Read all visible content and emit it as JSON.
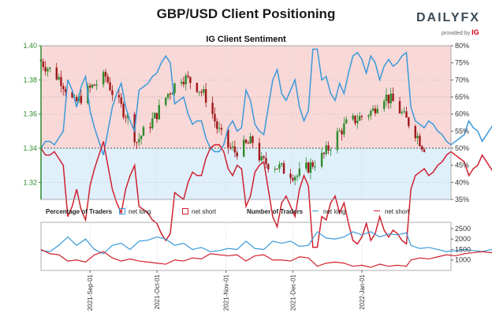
{
  "header": {
    "title": "GBP/USD Client Positioning",
    "brand": {
      "name": "DAILYFX",
      "tagline": "provided by",
      "tagline_brand": "IG"
    }
  },
  "legend": {
    "pct_label": "Percentage of Traders",
    "pct_long": "net long",
    "pct_short": "net short",
    "num_label": "Number of Traders",
    "num_long": "net long",
    "num_short": "net short"
  },
  "colors": {
    "long": "#3a9ad9",
    "short": "#d0202e",
    "long_fill": "#dff0fb",
    "short_fill": "#f9d8d8",
    "candle_up": "#2e8b2e",
    "candle_down": "#a01818",
    "axis_left": "#2e8b2e",
    "ref_line": "#555555"
  },
  "chart_data": {
    "type": "line",
    "subtitle": "IG Client Sentiment",
    "x_ticks": [
      "2021-Sep-01",
      "2021-Oct-01",
      "2021-Nov-01",
      "2021-Dec-01",
      "2022-Jan-01"
    ],
    "x_range": [
      "2021-Aug-10",
      "2022-Feb-10"
    ],
    "price_axis": {
      "ticks": [
        "1.40",
        "1.38",
        "1.36",
        "1.34",
        "1.32"
      ],
      "range": [
        1.31,
        1.4
      ]
    },
    "pct_axis": {
      "ticks": [
        "80%",
        "75%",
        "70%",
        "65%",
        "60%",
        "55%",
        "50%",
        "45%",
        "40%",
        "35%"
      ],
      "range": [
        35,
        80
      ]
    },
    "count_axis": {
      "ticks": [
        "2500",
        "2000",
        "1500",
        "1000"
      ],
      "range": [
        500,
        2800
      ]
    },
    "reference_lines": {
      "price": 1.34,
      "pct": 50
    },
    "pct_long": [
      [
        0,
        50
      ],
      [
        2,
        52
      ],
      [
        4,
        52
      ],
      [
        6,
        51
      ],
      [
        8,
        53
      ],
      [
        10,
        55
      ],
      [
        12,
        70
      ],
      [
        14,
        67
      ],
      [
        16,
        62
      ],
      [
        18,
        68
      ],
      [
        20,
        71
      ],
      [
        22,
        61
      ],
      [
        24,
        56
      ],
      [
        26,
        52
      ],
      [
        28,
        48
      ],
      [
        30,
        55
      ],
      [
        32,
        62
      ],
      [
        34,
        66
      ],
      [
        36,
        69
      ],
      [
        38,
        62
      ],
      [
        40,
        58
      ],
      [
        42,
        55
      ],
      [
        44,
        67
      ],
      [
        46,
        68
      ],
      [
        48,
        69
      ],
      [
        50,
        71
      ],
      [
        52,
        72
      ],
      [
        54,
        75
      ],
      [
        56,
        77
      ],
      [
        58,
        75
      ],
      [
        60,
        63
      ],
      [
        62,
        64
      ],
      [
        64,
        65
      ],
      [
        66,
        60
      ],
      [
        68,
        57
      ],
      [
        70,
        58
      ],
      [
        72,
        58
      ],
      [
        74,
        53
      ],
      [
        76,
        50
      ],
      [
        78,
        49
      ],
      [
        80,
        49
      ],
      [
        82,
        51
      ],
      [
        84,
        56
      ],
      [
        86,
        58
      ],
      [
        88,
        55
      ],
      [
        90,
        56
      ],
      [
        92,
        67
      ],
      [
        94,
        64
      ],
      [
        96,
        57
      ],
      [
        98,
        55
      ],
      [
        100,
        54
      ],
      [
        102,
        62
      ],
      [
        104,
        70
      ],
      [
        106,
        73
      ],
      [
        108,
        66
      ],
      [
        110,
        64
      ],
      [
        112,
        67
      ],
      [
        114,
        70
      ],
      [
        116,
        62
      ],
      [
        118,
        58
      ],
      [
        120,
        61
      ],
      [
        122,
        79
      ],
      [
        124,
        79
      ],
      [
        126,
        70
      ],
      [
        128,
        71
      ],
      [
        130,
        66
      ],
      [
        132,
        64
      ],
      [
        134,
        69
      ],
      [
        136,
        66
      ],
      [
        138,
        72
      ],
      [
        140,
        77
      ],
      [
        142,
        78
      ],
      [
        144,
        76
      ],
      [
        146,
        72
      ],
      [
        148,
        77
      ],
      [
        150,
        75
      ],
      [
        152,
        70
      ],
      [
        154,
        74
      ],
      [
        156,
        76
      ],
      [
        158,
        74
      ],
      [
        160,
        75
      ],
      [
        162,
        77
      ],
      [
        164,
        78
      ],
      [
        166,
        62
      ],
      [
        168,
        58
      ],
      [
        170,
        57
      ],
      [
        172,
        56
      ],
      [
        174,
        58
      ],
      [
        176,
        57
      ],
      [
        178,
        55
      ],
      [
        180,
        54
      ],
      [
        182,
        52
      ],
      [
        184,
        51
      ],
      [
        186,
        52
      ],
      [
        188,
        53
      ],
      [
        190,
        54
      ],
      [
        192,
        58
      ],
      [
        194,
        56
      ],
      [
        196,
        55
      ],
      [
        198,
        52
      ],
      [
        200,
        54
      ],
      [
        202,
        56
      ],
      [
        204,
        58
      ],
      [
        206,
        55
      ],
      [
        208,
        53
      ],
      [
        210,
        51
      ],
      [
        212,
        52
      ],
      [
        214,
        54
      ],
      [
        216,
        57
      ],
      [
        218,
        58
      ]
    ],
    "num_long": [
      [
        0,
        1450
      ],
      [
        4,
        1400
      ],
      [
        8,
        1700
      ],
      [
        12,
        2100
      ],
      [
        16,
        1700
      ],
      [
        20,
        2000
      ],
      [
        24,
        1500
      ],
      [
        28,
        1300
      ],
      [
        32,
        1700
      ],
      [
        36,
        1800
      ],
      [
        40,
        1500
      ],
      [
        44,
        1900
      ],
      [
        48,
        1950
      ],
      [
        52,
        2100
      ],
      [
        56,
        2000
      ],
      [
        60,
        1700
      ],
      [
        64,
        1800
      ],
      [
        68,
        1500
      ],
      [
        72,
        1600
      ],
      [
        76,
        1400
      ],
      [
        80,
        1450
      ],
      [
        84,
        1550
      ],
      [
        88,
        1500
      ],
      [
        92,
        1900
      ],
      [
        96,
        1550
      ],
      [
        100,
        1500
      ],
      [
        104,
        1900
      ],
      [
        108,
        1800
      ],
      [
        112,
        1900
      ],
      [
        116,
        1650
      ],
      [
        120,
        1700
      ],
      [
        124,
        2350
      ],
      [
        128,
        2050
      ],
      [
        132,
        2000
      ],
      [
        136,
        2100
      ],
      [
        140,
        2350
      ],
      [
        144,
        2200
      ],
      [
        148,
        2350
      ],
      [
        152,
        2100
      ],
      [
        156,
        2250
      ],
      [
        160,
        2200
      ],
      [
        164,
        2300
      ],
      [
        166,
        1700
      ],
      [
        170,
        1550
      ],
      [
        174,
        1600
      ],
      [
        178,
        1500
      ],
      [
        182,
        1400
      ],
      [
        186,
        1450
      ],
      [
        190,
        1500
      ],
      [
        194,
        1450
      ],
      [
        198,
        1400
      ],
      [
        202,
        1500
      ],
      [
        206,
        1450
      ],
      [
        210,
        1400
      ],
      [
        214,
        1500
      ],
      [
        218,
        1550
      ]
    ],
    "num_short": [
      [
        0,
        1500
      ],
      [
        4,
        1300
      ],
      [
        8,
        1250
      ],
      [
        12,
        950
      ],
      [
        16,
        1000
      ],
      [
        20,
        900
      ],
      [
        24,
        1250
      ],
      [
        28,
        1400
      ],
      [
        32,
        1100
      ],
      [
        36,
        950
      ],
      [
        40,
        1050
      ],
      [
        44,
        950
      ],
      [
        48,
        900
      ],
      [
        52,
        850
      ],
      [
        56,
        800
      ],
      [
        60,
        1000
      ],
      [
        64,
        950
      ],
      [
        68,
        1100
      ],
      [
        72,
        1050
      ],
      [
        76,
        1300
      ],
      [
        80,
        1250
      ],
      [
        84,
        1200
      ],
      [
        88,
        1250
      ],
      [
        92,
        950
      ],
      [
        96,
        1200
      ],
      [
        100,
        1250
      ],
      [
        104,
        1000
      ],
      [
        108,
        1000
      ],
      [
        112,
        950
      ],
      [
        116,
        1150
      ],
      [
        120,
        1100
      ],
      [
        124,
        700
      ],
      [
        128,
        850
      ],
      [
        132,
        900
      ],
      [
        136,
        850
      ],
      [
        140,
        700
      ],
      [
        144,
        750
      ],
      [
        148,
        650
      ],
      [
        152,
        800
      ],
      [
        156,
        700
      ],
      [
        160,
        750
      ],
      [
        164,
        700
      ],
      [
        166,
        1000
      ],
      [
        170,
        1100
      ],
      [
        174,
        1050
      ],
      [
        178,
        1150
      ],
      [
        182,
        1250
      ],
      [
        186,
        1200
      ],
      [
        190,
        1300
      ],
      [
        194,
        1350
      ],
      [
        198,
        1400
      ],
      [
        202,
        1350
      ],
      [
        206,
        1500
      ],
      [
        210,
        1400
      ],
      [
        214,
        1250
      ],
      [
        218,
        1000
      ]
    ]
  }
}
